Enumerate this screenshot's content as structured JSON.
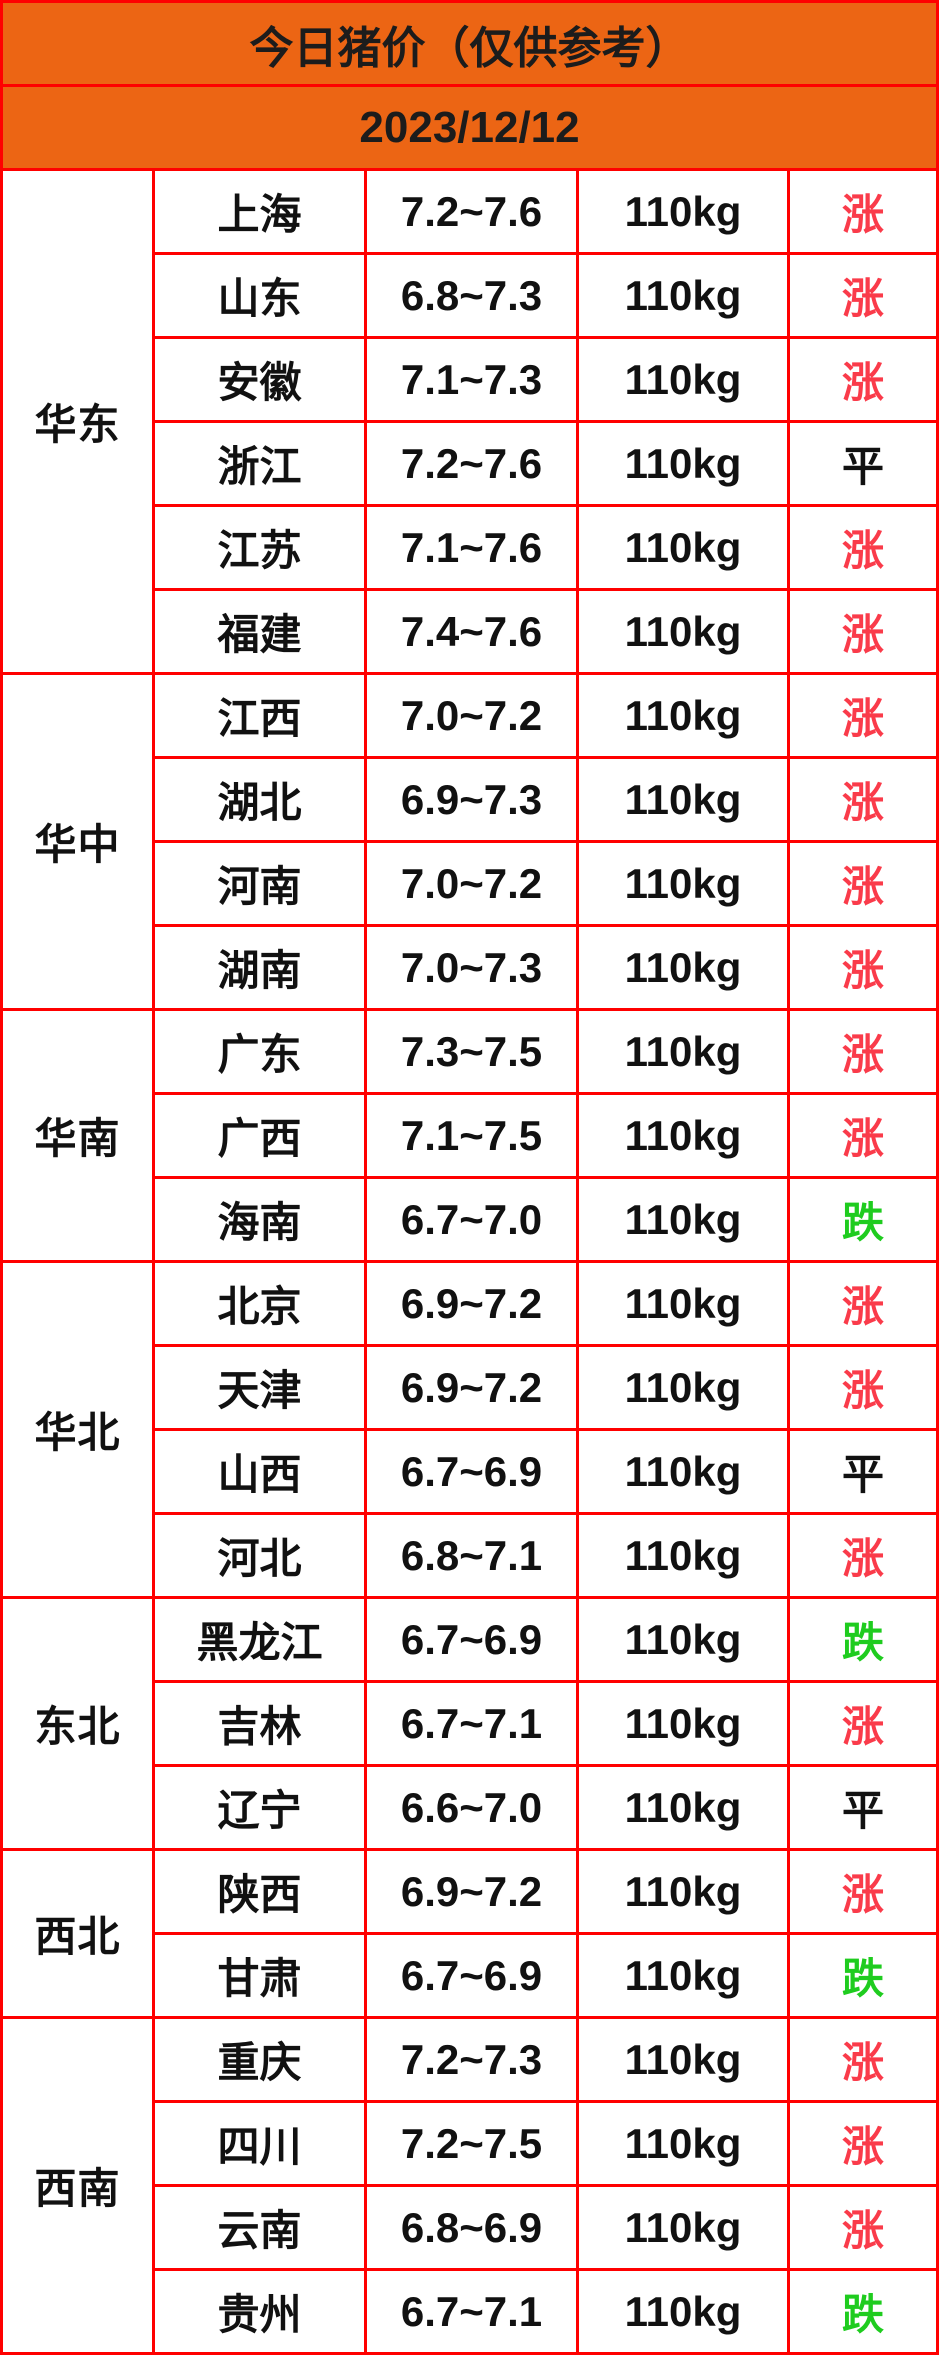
{
  "header": {
    "title": "今日猪价（仅供参考）",
    "date": "2023/12/12"
  },
  "colors": {
    "header_bg": "#ec6514",
    "border_red": "#ff0000",
    "up_red": "#fa3b4a",
    "down_green": "#1fcc1f",
    "ink": "#111111"
  },
  "table": {
    "regions": [
      {
        "name": "华东",
        "rows": [
          {
            "province": "上海",
            "price": "7.2~7.6",
            "weight": "110kg",
            "trend": "涨",
            "trend_type": "up"
          },
          {
            "province": "山东",
            "price": "6.8~7.3",
            "weight": "110kg",
            "trend": "涨",
            "trend_type": "up"
          },
          {
            "province": "安徽",
            "price": "7.1~7.3",
            "weight": "110kg",
            "trend": "涨",
            "trend_type": "up"
          },
          {
            "province": "浙江",
            "price": "7.2~7.6",
            "weight": "110kg",
            "trend": "平",
            "trend_type": "flat"
          },
          {
            "province": "江苏",
            "price": "7.1~7.6",
            "weight": "110kg",
            "trend": "涨",
            "trend_type": "up"
          },
          {
            "province": "福建",
            "price": "7.4~7.6",
            "weight": "110kg",
            "trend": "涨",
            "trend_type": "up"
          }
        ]
      },
      {
        "name": "华中",
        "rows": [
          {
            "province": "江西",
            "price": "7.0~7.2",
            "weight": "110kg",
            "trend": "涨",
            "trend_type": "up"
          },
          {
            "province": "湖北",
            "price": "6.9~7.3",
            "weight": "110kg",
            "trend": "涨",
            "trend_type": "up"
          },
          {
            "province": "河南",
            "price": "7.0~7.2",
            "weight": "110kg",
            "trend": "涨",
            "trend_type": "up"
          },
          {
            "province": "湖南",
            "price": "7.0~7.3",
            "weight": "110kg",
            "trend": "涨",
            "trend_type": "up"
          }
        ]
      },
      {
        "name": "华南",
        "rows": [
          {
            "province": "广东",
            "price": "7.3~7.5",
            "weight": "110kg",
            "trend": "涨",
            "trend_type": "up"
          },
          {
            "province": "广西",
            "price": "7.1~7.5",
            "weight": "110kg",
            "trend": "涨",
            "trend_type": "up"
          },
          {
            "province": "海南",
            "price": "6.7~7.0",
            "weight": "110kg",
            "trend": "跌",
            "trend_type": "down"
          }
        ]
      },
      {
        "name": "华北",
        "rows": [
          {
            "province": "北京",
            "price": "6.9~7.2",
            "weight": "110kg",
            "trend": "涨",
            "trend_type": "up"
          },
          {
            "province": "天津",
            "price": "6.9~7.2",
            "weight": "110kg",
            "trend": "涨",
            "trend_type": "up"
          },
          {
            "province": "山西",
            "price": "6.7~6.9",
            "weight": "110kg",
            "trend": "平",
            "trend_type": "flat"
          },
          {
            "province": "河北",
            "price": "6.8~7.1",
            "weight": "110kg",
            "trend": "涨",
            "trend_type": "up"
          }
        ]
      },
      {
        "name": "东北",
        "rows": [
          {
            "province": "黑龙江",
            "price": "6.7~6.9",
            "weight": "110kg",
            "trend": "跌",
            "trend_type": "down"
          },
          {
            "province": "吉林",
            "price": "6.7~7.1",
            "weight": "110kg",
            "trend": "涨",
            "trend_type": "up"
          },
          {
            "province": "辽宁",
            "price": "6.6~7.0",
            "weight": "110kg",
            "trend": "平",
            "trend_type": "flat"
          }
        ]
      },
      {
        "name": "西北",
        "rows": [
          {
            "province": "陕西",
            "price": "6.9~7.2",
            "weight": "110kg",
            "trend": "涨",
            "trend_type": "up"
          },
          {
            "province": "甘肃",
            "price": "6.7~6.9",
            "weight": "110kg",
            "trend": "跌",
            "trend_type": "down"
          }
        ]
      },
      {
        "name": "西南",
        "rows": [
          {
            "province": "重庆",
            "price": "7.2~7.3",
            "weight": "110kg",
            "trend": "涨",
            "trend_type": "up"
          },
          {
            "province": "四川",
            "price": "7.2~7.5",
            "weight": "110kg",
            "trend": "涨",
            "trend_type": "up"
          },
          {
            "province": "云南",
            "price": "6.8~6.9",
            "weight": "110kg",
            "trend": "涨",
            "trend_type": "up"
          },
          {
            "province": "贵州",
            "price": "6.7~7.1",
            "weight": "110kg",
            "trend": "跌",
            "trend_type": "down"
          }
        ]
      }
    ]
  }
}
